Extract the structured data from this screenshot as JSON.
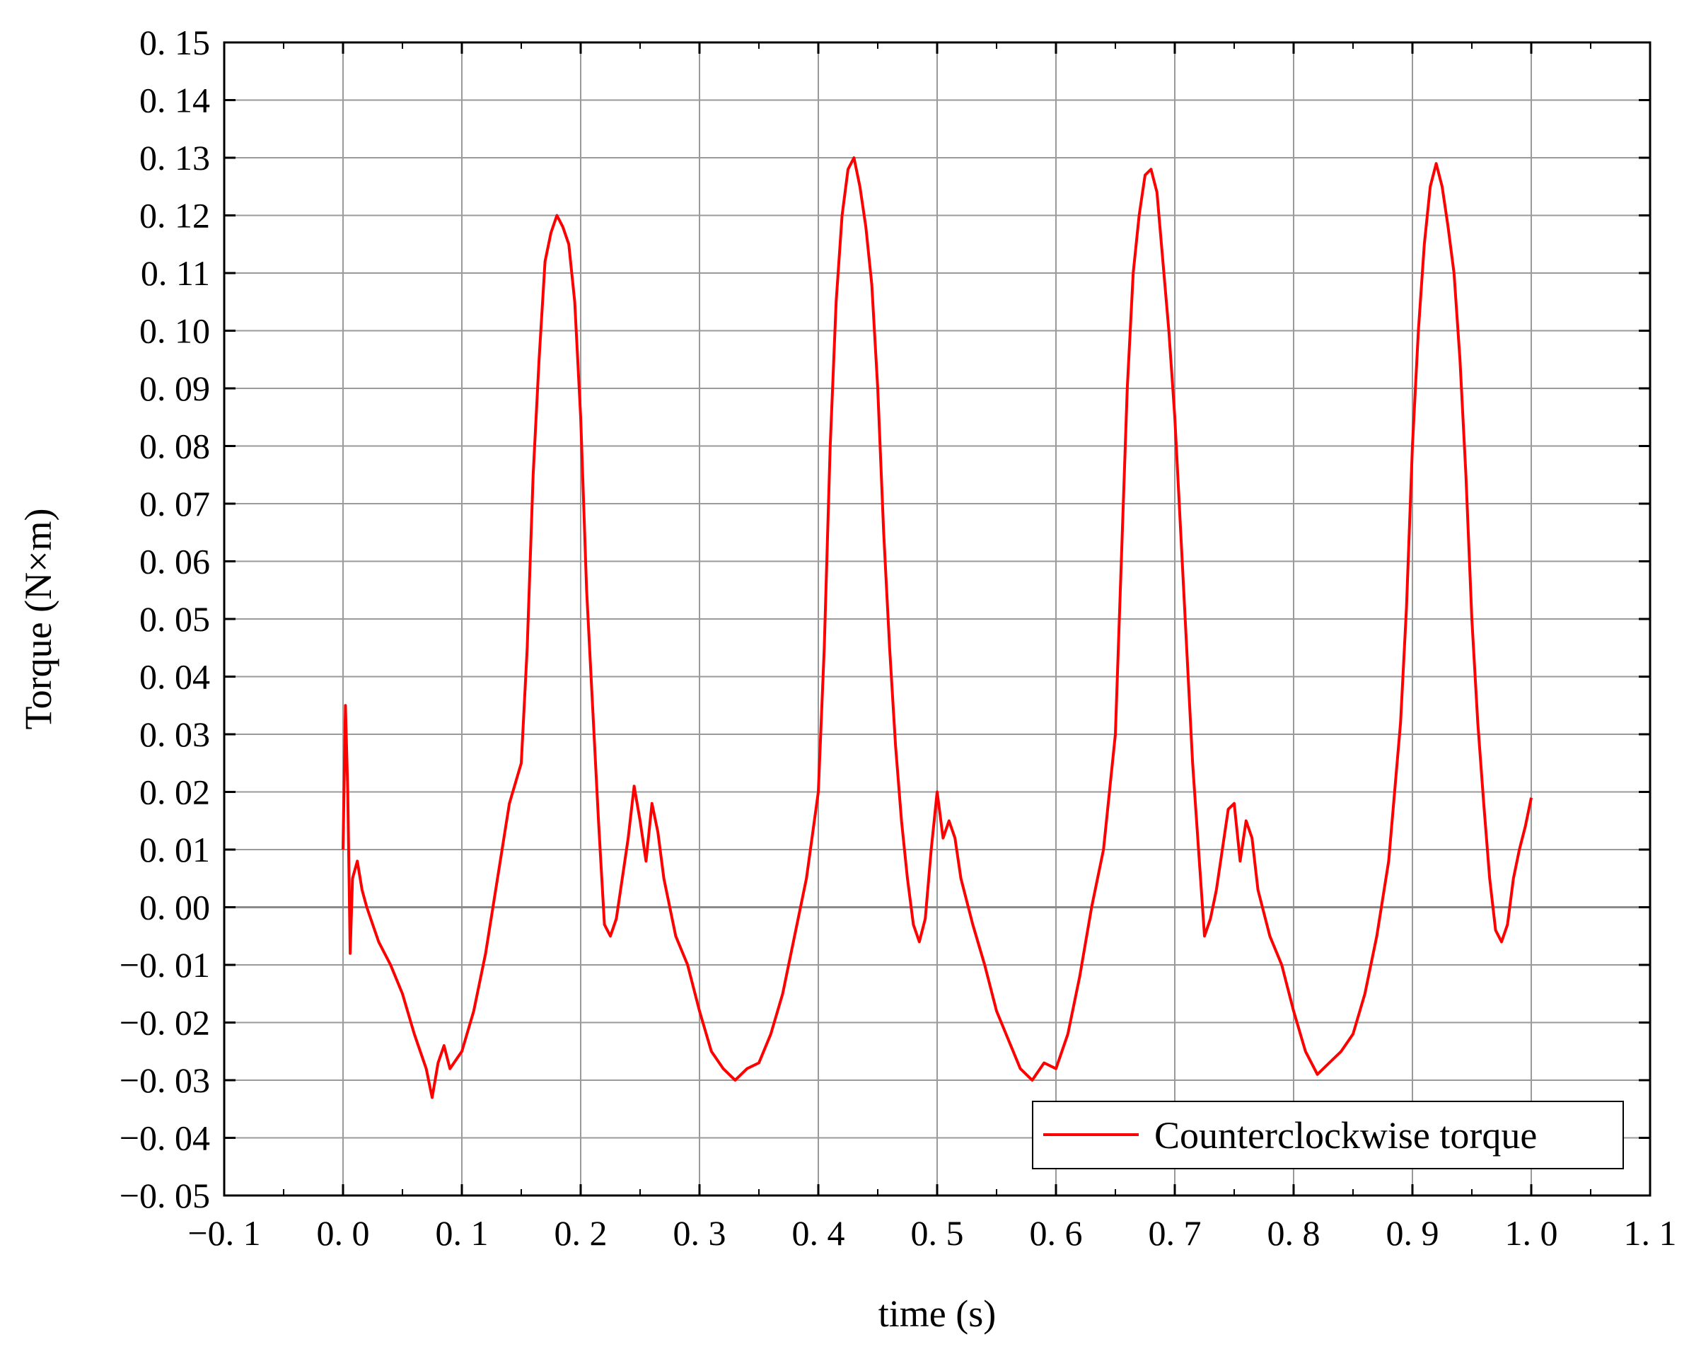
{
  "chart_data": {
    "type": "line",
    "title": "",
    "xlabel": "time (s)",
    "ylabel": "Torque (N×m)",
    "xlim": [
      -0.1,
      1.1
    ],
    "ylim": [
      -0.05,
      0.15
    ],
    "grid": true,
    "legend_position": "bottom-right",
    "x_tick_labels": [
      "−0. 1",
      "0. 0",
      "0. 1",
      "0. 2",
      "0. 3",
      "0. 4",
      "0. 5",
      "0. 6",
      "0. 7",
      "0. 8",
      "0. 9",
      "1. 0",
      "1. 1"
    ],
    "y_tick_labels": [
      "0. 15",
      "0. 14",
      "0. 13",
      "0. 12",
      "0. 11",
      "0. 10",
      "0. 09",
      "0. 08",
      "0. 07",
      "0. 06",
      "0. 05",
      "0. 04",
      "0. 03",
      "0. 02",
      "0. 01",
      "0. 00",
      "−0. 01",
      "−0. 02",
      "−0. 03",
      "−0. 04",
      "−0. 05"
    ],
    "x_ticks": [
      -0.1,
      0.0,
      0.1,
      0.2,
      0.3,
      0.4,
      0.5,
      0.6,
      0.7,
      0.8,
      0.9,
      1.0,
      1.1
    ],
    "y_ticks": [
      0.15,
      0.14,
      0.13,
      0.12,
      0.11,
      0.1,
      0.09,
      0.08,
      0.07,
      0.06,
      0.05,
      0.04,
      0.03,
      0.02,
      0.01,
      0.0,
      -0.01,
      -0.02,
      -0.03,
      -0.04,
      -0.05
    ],
    "series": [
      {
        "name": "Counterclockwise torque",
        "color": "#ff0000",
        "x": [
          0.0,
          0.002,
          0.004,
          0.006,
          0.008,
          0.012,
          0.016,
          0.02,
          0.025,
          0.03,
          0.04,
          0.05,
          0.06,
          0.07,
          0.075,
          0.08,
          0.085,
          0.09,
          0.1,
          0.11,
          0.12,
          0.13,
          0.14,
          0.15,
          0.155,
          0.16,
          0.165,
          0.17,
          0.175,
          0.18,
          0.185,
          0.19,
          0.195,
          0.2,
          0.205,
          0.21,
          0.215,
          0.22,
          0.225,
          0.23,
          0.235,
          0.24,
          0.245,
          0.25,
          0.255,
          0.26,
          0.265,
          0.27,
          0.28,
          0.29,
          0.3,
          0.31,
          0.32,
          0.33,
          0.34,
          0.35,
          0.36,
          0.37,
          0.38,
          0.39,
          0.4,
          0.405,
          0.41,
          0.415,
          0.42,
          0.425,
          0.43,
          0.435,
          0.44,
          0.445,
          0.45,
          0.455,
          0.46,
          0.465,
          0.47,
          0.475,
          0.48,
          0.485,
          0.49,
          0.495,
          0.5,
          0.505,
          0.51,
          0.515,
          0.52,
          0.53,
          0.54,
          0.55,
          0.56,
          0.57,
          0.58,
          0.59,
          0.6,
          0.61,
          0.62,
          0.63,
          0.64,
          0.65,
          0.655,
          0.66,
          0.665,
          0.67,
          0.675,
          0.68,
          0.685,
          0.69,
          0.695,
          0.7,
          0.705,
          0.71,
          0.715,
          0.72,
          0.725,
          0.73,
          0.735,
          0.74,
          0.745,
          0.75,
          0.755,
          0.76,
          0.765,
          0.77,
          0.78,
          0.79,
          0.8,
          0.81,
          0.82,
          0.83,
          0.84,
          0.85,
          0.86,
          0.87,
          0.88,
          0.885,
          0.89,
          0.895,
          0.9,
          0.905,
          0.91,
          0.915,
          0.92,
          0.925,
          0.93,
          0.935,
          0.94,
          0.945,
          0.95,
          0.955,
          0.96,
          0.965,
          0.97,
          0.975,
          0.98,
          0.985,
          0.99,
          0.995,
          1.0
        ],
        "y": [
          0.01,
          0.035,
          0.02,
          -0.008,
          0.005,
          0.008,
          0.003,
          0.0,
          -0.003,
          -0.006,
          -0.01,
          -0.015,
          -0.022,
          -0.028,
          -0.033,
          -0.027,
          -0.024,
          -0.028,
          -0.025,
          -0.018,
          -0.008,
          0.005,
          0.018,
          0.025,
          0.045,
          0.075,
          0.095,
          0.112,
          0.117,
          0.12,
          0.118,
          0.115,
          0.105,
          0.085,
          0.055,
          0.035,
          0.015,
          -0.003,
          -0.005,
          -0.002,
          0.005,
          0.012,
          0.021,
          0.015,
          0.008,
          0.018,
          0.013,
          0.005,
          -0.005,
          -0.01,
          -0.018,
          -0.025,
          -0.028,
          -0.03,
          -0.028,
          -0.027,
          -0.022,
          -0.015,
          -0.005,
          0.005,
          0.02,
          0.045,
          0.08,
          0.105,
          0.12,
          0.128,
          0.13,
          0.125,
          0.118,
          0.108,
          0.09,
          0.065,
          0.045,
          0.028,
          0.015,
          0.005,
          -0.003,
          -0.006,
          -0.002,
          0.01,
          0.02,
          0.012,
          0.015,
          0.012,
          0.005,
          -0.003,
          -0.01,
          -0.018,
          -0.023,
          -0.028,
          -0.03,
          -0.027,
          -0.028,
          -0.022,
          -0.012,
          0.0,
          0.01,
          0.03,
          0.06,
          0.09,
          0.11,
          0.12,
          0.127,
          0.128,
          0.124,
          0.112,
          0.1,
          0.085,
          0.065,
          0.045,
          0.025,
          0.01,
          -0.005,
          -0.002,
          0.003,
          0.01,
          0.017,
          0.018,
          0.008,
          0.015,
          0.012,
          0.003,
          -0.005,
          -0.01,
          -0.018,
          -0.025,
          -0.029,
          -0.027,
          -0.025,
          -0.022,
          -0.015,
          -0.005,
          0.008,
          0.02,
          0.032,
          0.052,
          0.08,
          0.1,
          0.115,
          0.125,
          0.129,
          0.125,
          0.118,
          0.11,
          0.095,
          0.075,
          0.05,
          0.032,
          0.018,
          0.005,
          -0.004,
          -0.006,
          -0.003,
          0.005,
          0.01,
          0.014,
          0.019
        ]
      }
    ]
  }
}
